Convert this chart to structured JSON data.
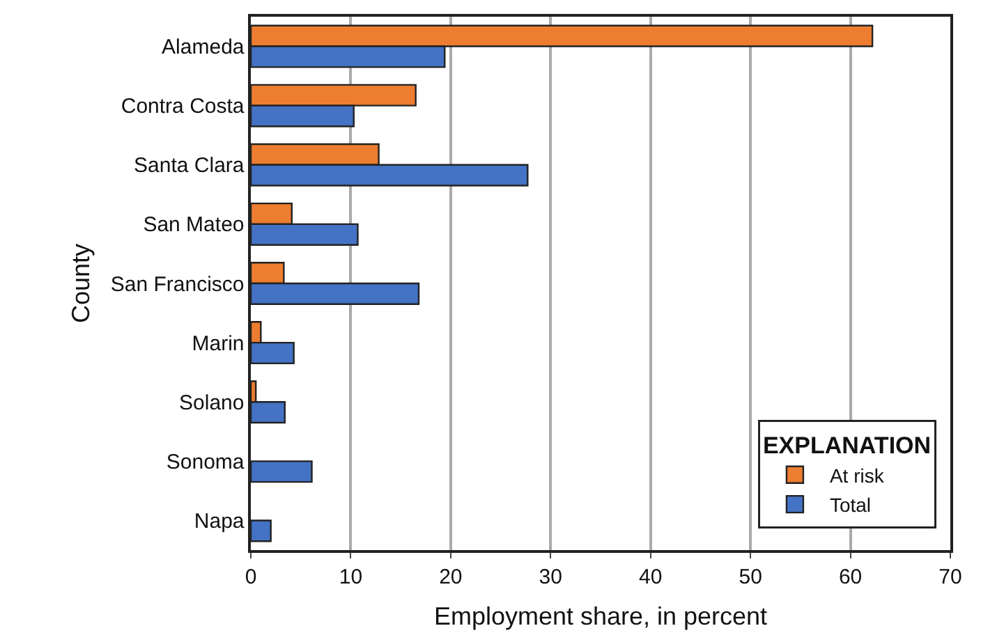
{
  "chart_data": {
    "type": "bar",
    "orientation": "horizontal",
    "xlabel": "Employment share, in percent",
    "ylabel": "County",
    "legend_title": "EXPLANATION",
    "categories": [
      "Alameda",
      "Contra Costa",
      "Santa Clara",
      "San Mateo",
      "San Francisco",
      "Marin",
      "Solano",
      "Sonoma",
      "Napa"
    ],
    "series": [
      {
        "name": "At risk",
        "color": "#ed7d31",
        "values": [
          62.2,
          16.5,
          12.8,
          4.1,
          3.3,
          1.0,
          0.5,
          null,
          null
        ]
      },
      {
        "name": "Total",
        "color": "#4472c4",
        "values": [
          19.4,
          10.3,
          27.7,
          10.7,
          16.8,
          4.3,
          3.4,
          6.1,
          2.0
        ]
      }
    ],
    "xlim": [
      0,
      70
    ],
    "xticks": [
      0,
      10,
      20,
      30,
      40,
      50,
      60,
      70
    ],
    "grid": "x",
    "legend": "bottom right"
  }
}
